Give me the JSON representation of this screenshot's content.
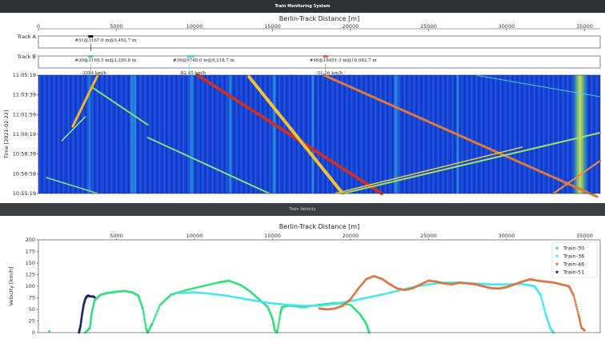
{
  "window": {
    "title": "Train Monitoring System"
  },
  "divider": {
    "label": "Train Velocity"
  },
  "top_panel": {
    "axis_title": "Berlin-Track Distance [m]",
    "x_ticks": [
      "0",
      "5000",
      "10000",
      "15000",
      "20000",
      "25000",
      "30000",
      "35000"
    ],
    "track_labels": [
      "Track A",
      "Track B"
    ],
    "ylabel": "Time [2021-02-22]",
    "time_ticks": [
      "11:05:19",
      "11:03:39",
      "11:01:59",
      "11:00:19",
      "10:58:39",
      "10:56:59",
      "10:55:19"
    ],
    "train_tags": [
      {
        "track": "A",
        "text": "#51@3167.6 m@3,492.7 m",
        "color": "#111111"
      },
      {
        "track": "B",
        "text": "#30@3169.5 m@3,290.8 m",
        "color": "#2fd4c0"
      },
      {
        "track": "B",
        "text": "#36@9748.0 m@9,218.7 m",
        "color": "#37e0e8"
      },
      {
        "track": "B",
        "text": "#46@18451.3 m@18,082.7 m",
        "color": "#e0603a"
      }
    ],
    "speed_labels": [
      "-3584 km/h",
      "-82.45 km/h",
      "-51.16 km/h"
    ]
  },
  "chart_data": {
    "type": "scatter",
    "title": "Berlin-Track Distance [m]",
    "xlabel": "",
    "ylabel": "Velocity [km/h]",
    "xlim": [
      0,
      36000
    ],
    "ylim": [
      0,
      200
    ],
    "x_ticks": [
      5000,
      10000,
      15000,
      20000,
      25000,
      30000,
      35000
    ],
    "y_ticks": [
      0,
      25,
      50,
      75,
      100,
      125,
      150,
      175,
      200
    ],
    "legend_position": "top-right",
    "series": [
      {
        "name": "Train-30",
        "color": "#2ee07a",
        "points": [
          [
            3000,
            0
          ],
          [
            3300,
            10
          ],
          [
            3400,
            40
          ],
          [
            3600,
            70
          ],
          [
            4000,
            82
          ],
          [
            4500,
            86
          ],
          [
            5000,
            88
          ],
          [
            5500,
            90
          ],
          [
            6000,
            87
          ],
          [
            6400,
            80
          ],
          [
            6700,
            50
          ],
          [
            6900,
            10
          ],
          [
            7000,
            0
          ],
          [
            7300,
            20
          ],
          [
            7800,
            60
          ],
          [
            8500,
            82
          ],
          [
            9500,
            92
          ],
          [
            10500,
            100
          ],
          [
            11500,
            108
          ],
          [
            12200,
            112
          ],
          [
            13000,
            102
          ],
          [
            13600,
            88
          ],
          [
            14200,
            70
          ],
          [
            14700,
            55
          ],
          [
            15000,
            30
          ],
          [
            15150,
            5
          ],
          [
            15300,
            0
          ],
          [
            15500,
            40
          ],
          [
            15600,
            55
          ],
          [
            16000,
            58
          ],
          [
            17000,
            55
          ],
          [
            18000,
            60
          ],
          [
            19000,
            64
          ],
          [
            20000,
            60
          ],
          [
            20600,
            40
          ],
          [
            21000,
            20
          ],
          [
            21200,
            0
          ]
        ]
      },
      {
        "name": "Train-36",
        "color": "#3ee6f0",
        "points": [
          [
            9000,
            85
          ],
          [
            10000,
            87
          ],
          [
            11000,
            84
          ],
          [
            12000,
            80
          ],
          [
            13000,
            74
          ],
          [
            14000,
            68
          ],
          [
            15000,
            63
          ],
          [
            16000,
            60
          ],
          [
            17000,
            58
          ],
          [
            18000,
            58
          ],
          [
            19000,
            62
          ],
          [
            20000,
            68
          ],
          [
            21000,
            75
          ],
          [
            22000,
            82
          ],
          [
            23000,
            90
          ],
          [
            24000,
            98
          ],
          [
            25000,
            104
          ],
          [
            26000,
            108
          ],
          [
            27000,
            108
          ],
          [
            28000,
            106
          ],
          [
            29000,
            104
          ],
          [
            30000,
            104
          ],
          [
            31000,
            105
          ],
          [
            31800,
            100
          ],
          [
            32200,
            80
          ],
          [
            32500,
            40
          ],
          [
            32800,
            10
          ],
          [
            33000,
            0
          ]
        ]
      },
      {
        "name": "Train-46",
        "color": "#e0733f",
        "points": [
          [
            18000,
            52
          ],
          [
            18500,
            50
          ],
          [
            19000,
            52
          ],
          [
            19500,
            58
          ],
          [
            20000,
            72
          ],
          [
            20500,
            95
          ],
          [
            21000,
            115
          ],
          [
            21500,
            122
          ],
          [
            22000,
            116
          ],
          [
            22500,
            105
          ],
          [
            23000,
            95
          ],
          [
            23500,
            92
          ],
          [
            24000,
            96
          ],
          [
            24500,
            104
          ],
          [
            25000,
            112
          ],
          [
            25500,
            110
          ],
          [
            26000,
            106
          ],
          [
            26500,
            104
          ],
          [
            27000,
            108
          ],
          [
            27500,
            106
          ],
          [
            28000,
            104
          ],
          [
            28500,
            100
          ],
          [
            29000,
            96
          ],
          [
            29500,
            95
          ],
          [
            30000,
            98
          ],
          [
            30500,
            104
          ],
          [
            31000,
            110
          ],
          [
            31500,
            115
          ],
          [
            32000,
            112
          ],
          [
            32500,
            110
          ],
          [
            33000,
            108
          ],
          [
            33500,
            104
          ],
          [
            34000,
            100
          ],
          [
            34300,
            80
          ],
          [
            34600,
            40
          ],
          [
            34800,
            10
          ],
          [
            35000,
            5
          ]
        ]
      },
      {
        "name": "Train-51",
        "color": "#1a2a6c",
        "points": [
          [
            2600,
            0
          ],
          [
            2700,
            15
          ],
          [
            2800,
            40
          ],
          [
            2900,
            60
          ],
          [
            3000,
            72
          ],
          [
            3100,
            78
          ],
          [
            3200,
            80
          ],
          [
            3300,
            78
          ],
          [
            3500,
            78
          ],
          [
            3600,
            76
          ]
        ]
      }
    ]
  }
}
